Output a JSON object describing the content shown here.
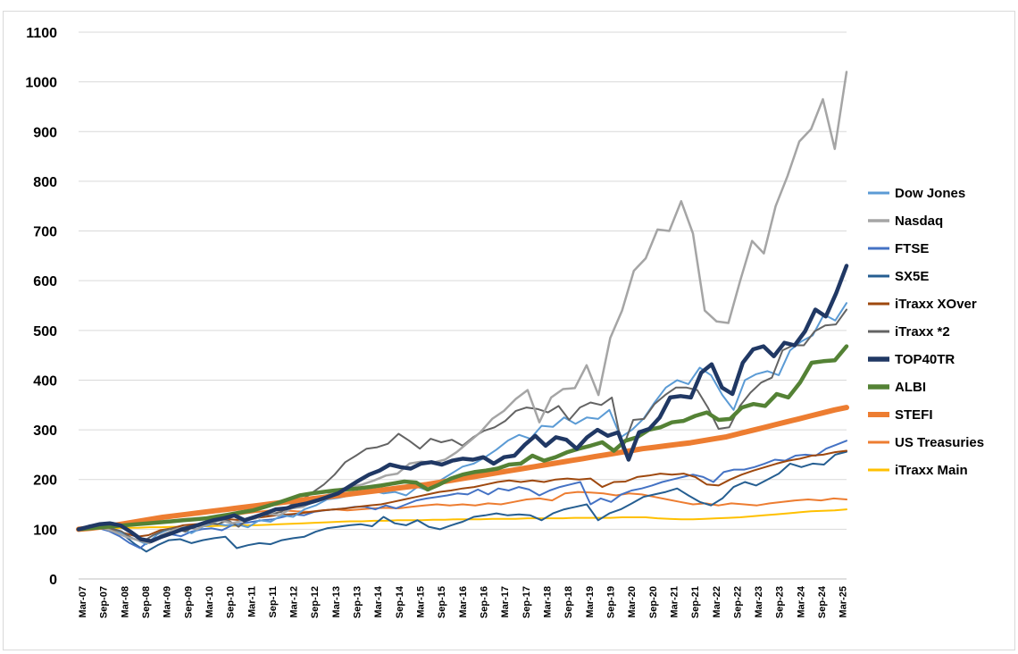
{
  "chart_data": {
    "type": "line",
    "title": "",
    "xlabel": "",
    "ylabel": "",
    "ylim": [
      0,
      1100
    ],
    "yticks": [
      0,
      100,
      200,
      300,
      400,
      500,
      600,
      700,
      800,
      900,
      1000,
      1100
    ],
    "grid": "horizontal",
    "legend": "right",
    "x_tick_labels": [
      "Mar-07",
      "Sep-07",
      "Mar-08",
      "Sep-08",
      "Mar-09",
      "Sep-09",
      "Mar-10",
      "Sep-10",
      "Mar-11",
      "Sep-11",
      "Mar-12",
      "Sep-12",
      "Mar-13",
      "Sep-13",
      "Mar-14",
      "Sep-14",
      "Mar-15",
      "Sep-15",
      "Mar-16",
      "Sep-16",
      "Mar-17",
      "Sep-17",
      "Mar-18",
      "Sep-18",
      "Mar-19",
      "Sep-19",
      "Mar-20",
      "Sep-20",
      "Mar-21",
      "Sep-21",
      "Mar-22",
      "Sep-22",
      "Mar-23",
      "Sep-23",
      "Mar-24",
      "Sep-24",
      "Mar-25"
    ],
    "series": [
      {
        "name": "Dow Jones",
        "color": "#5b9bd5",
        "width": 2,
        "values": [
          100,
          105,
          108,
          102,
          90,
          80,
          70,
          90,
          100,
          102,
          92,
          105,
          112,
          108,
          110,
          104,
          118,
          115,
          128,
          125,
          140,
          148,
          160,
          163,
          168,
          175,
          178,
          172,
          175,
          168,
          185,
          178,
          198,
          212,
          226,
          232,
          245,
          260,
          278,
          290,
          282,
          308,
          306,
          325,
          312,
          325,
          322,
          340,
          285,
          300,
          322,
          355,
          385,
          400,
          392,
          425,
          410,
          370,
          340,
          400,
          412,
          418,
          410,
          460,
          478,
          490,
          532,
          520,
          555
        ]
      },
      {
        "name": "Nasdaq",
        "color": "#a5a5a5",
        "width": 2.5,
        "values": [
          100,
          104,
          103,
          95,
          85,
          78,
          72,
          88,
          98,
          105,
          100,
          112,
          118,
          112,
          118,
          122,
          132,
          128,
          142,
          145,
          158,
          168,
          180,
          185,
          190,
          198,
          208,
          212,
          232,
          236,
          234,
          240,
          255,
          275,
          295,
          322,
          338,
          362,
          380,
          315,
          365,
          382,
          384,
          430,
          370,
          485,
          540,
          620,
          645,
          703,
          700,
          760,
          695,
          540,
          518,
          515,
          600,
          680,
          655,
          750,
          810,
          880,
          905,
          965,
          865,
          1020
        ]
      },
      {
        "name": "FTSE",
        "color": "#4472c4",
        "width": 2,
        "values": [
          100,
          105,
          102,
          96,
          86,
          72,
          62,
          78,
          85,
          90,
          86,
          95,
          100,
          102,
          98,
          108,
          112,
          115,
          118,
          120,
          125,
          130,
          128,
          135,
          138,
          140,
          142,
          145,
          145,
          140,
          148,
          142,
          150,
          158,
          162,
          165,
          168,
          172,
          170,
          180,
          170,
          182,
          178,
          185,
          180,
          168,
          178,
          185,
          190,
          195,
          150,
          162,
          155,
          170,
          178,
          182,
          188,
          195,
          200,
          205,
          210,
          205,
          195,
          215,
          220,
          220,
          225,
          232,
          240,
          238,
          248,
          250,
          248,
          262,
          270,
          278
        ]
      },
      {
        "name": "SX5E",
        "color": "#255e91",
        "width": 2,
        "values": [
          100,
          108,
          106,
          98,
          88,
          70,
          55,
          68,
          78,
          80,
          72,
          78,
          82,
          85,
          62,
          68,
          72,
          70,
          78,
          82,
          85,
          95,
          102,
          105,
          108,
          110,
          106,
          125,
          112,
          108,
          118,
          105,
          100,
          108,
          115,
          125,
          128,
          132,
          128,
          130,
          128,
          118,
          132,
          140,
          145,
          150,
          118,
          132,
          140,
          152,
          165,
          170,
          175,
          182,
          168,
          155,
          148,
          162,
          185,
          195,
          188,
          200,
          212,
          232,
          225,
          232,
          230,
          250,
          256
        ]
      },
      {
        "name": "iTraxx XOver",
        "color": "#9e480e",
        "width": 2,
        "values": [
          100,
          103,
          105,
          98,
          92,
          85,
          88,
          98,
          102,
          108,
          110,
          112,
          118,
          120,
          118,
          122,
          125,
          128,
          130,
          132,
          135,
          138,
          140,
          142,
          145,
          148,
          150,
          155,
          160,
          165,
          170,
          175,
          178,
          182,
          185,
          190,
          195,
          198,
          195,
          198,
          195,
          200,
          202,
          200,
          202,
          185,
          195,
          196,
          205,
          208,
          212,
          210,
          212,
          205,
          190,
          188,
          200,
          210,
          218,
          225,
          232,
          238,
          242,
          248,
          250,
          255,
          258
        ]
      },
      {
        "name": "iTraxx *2",
        "color": "#636363",
        "width": 2,
        "values": [
          100,
          104,
          108,
          102,
          96,
          82,
          75,
          88,
          98,
          102,
          95,
          108,
          112,
          110,
          118,
          105,
          122,
          128,
          130,
          135,
          150,
          160,
          175,
          190,
          210,
          235,
          248,
          262,
          265,
          272,
          292,
          278,
          262,
          282,
          275,
          280,
          268,
          285,
          298,
          305,
          318,
          338,
          345,
          342,
          335,
          348,
          320,
          345,
          355,
          350,
          365,
          262,
          320,
          322,
          352,
          370,
          385,
          385,
          380,
          345,
          302,
          305,
          348,
          375,
          395,
          405,
          460,
          470,
          470,
          498,
          510,
          512,
          542
        ]
      },
      {
        "name": "TOP40TR",
        "color": "#203864",
        "width": 4.5,
        "values": [
          100,
          105,
          110,
          112,
          108,
          95,
          80,
          76,
          85,
          92,
          100,
          105,
          112,
          118,
          122,
          128,
          118,
          125,
          132,
          140,
          142,
          148,
          152,
          158,
          165,
          172,
          185,
          198,
          210,
          218,
          230,
          225,
          222,
          232,
          235,
          230,
          238,
          242,
          240,
          245,
          232,
          245,
          248,
          270,
          288,
          268,
          285,
          280,
          262,
          285,
          300,
          288,
          295,
          240,
          295,
          302,
          325,
          365,
          368,
          365,
          415,
          432,
          385,
          372,
          435,
          462,
          468,
          448,
          475,
          470,
          498,
          542,
          528,
          575,
          630
        ]
      },
      {
        "name": "ALBI",
        "color": "#548235",
        "width": 4.5,
        "values": [
          100,
          102,
          104,
          106,
          108,
          110,
          112,
          114,
          116,
          118,
          120,
          122,
          126,
          130,
          134,
          138,
          145,
          152,
          160,
          168,
          172,
          175,
          178,
          180,
          182,
          185,
          188,
          192,
          196,
          194,
          180,
          190,
          202,
          210,
          215,
          218,
          222,
          230,
          232,
          248,
          238,
          245,
          255,
          262,
          268,
          275,
          258,
          278,
          285,
          300,
          305,
          315,
          318,
          328,
          335,
          320,
          322,
          345,
          352,
          348,
          372,
          365,
          395,
          435,
          438,
          440,
          468
        ]
      },
      {
        "name": "STEFI",
        "color": "#ed7d31",
        "width": 6,
        "values": [
          100,
          102,
          105,
          108,
          112,
          116,
          120,
          124,
          127,
          130,
          133,
          136,
          139,
          142,
          145,
          148,
          151,
          154,
          157,
          160,
          163,
          166,
          169,
          172,
          175,
          178,
          181,
          184,
          187,
          190,
          194,
          198,
          202,
          206,
          210,
          214,
          218,
          222,
          226,
          230,
          234,
          238,
          242,
          246,
          250,
          254,
          258,
          262,
          265,
          268,
          271,
          274,
          278,
          282,
          286,
          292,
          298,
          304,
          310,
          316,
          322,
          328,
          334,
          340,
          345
        ]
      },
      {
        "name": "US Treasuries",
        "color": "#f4b183",
        "stroke": "#ed7d31",
        "width": 2,
        "values": [
          100,
          102,
          104,
          106,
          108,
          110,
          112,
          115,
          118,
          120,
          122,
          125,
          128,
          132,
          135,
          138,
          138,
          136,
          135,
          138,
          140,
          138,
          140,
          142,
          143,
          142,
          145,
          148,
          150,
          148,
          150,
          148,
          152,
          150,
          155,
          160,
          162,
          158,
          172,
          175,
          174,
          172,
          168,
          172,
          170,
          165,
          160,
          155,
          150,
          152,
          148,
          152,
          150,
          148,
          152,
          155,
          158,
          160,
          158,
          162,
          160
        ]
      },
      {
        "name": "iTraxx Main",
        "color": "#ffc000",
        "width": 2,
        "values": [
          100,
          101,
          102,
          102,
          103,
          103,
          104,
          104,
          105,
          105,
          106,
          106,
          107,
          107,
          108,
          108,
          109,
          110,
          111,
          112,
          113,
          114,
          115,
          116,
          116,
          117,
          117,
          118,
          118,
          118,
          119,
          119,
          120,
          120,
          120,
          121,
          121,
          121,
          122,
          122,
          122,
          122,
          123,
          123,
          123,
          123,
          124,
          124,
          124,
          122,
          121,
          120,
          120,
          121,
          122,
          123,
          124,
          126,
          128,
          130,
          132,
          134,
          136,
          137,
          138,
          140
        ]
      }
    ]
  }
}
